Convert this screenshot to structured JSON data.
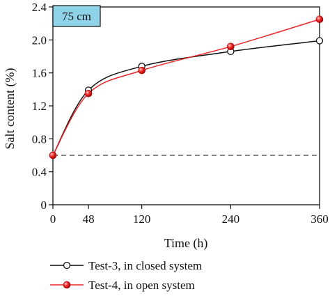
{
  "chart_data": {
    "type": "line",
    "xlabel": "Time (h)",
    "ylabel": "Salt content (%)",
    "x": [
      0,
      48,
      120,
      240,
      360
    ],
    "xticks": [
      0,
      48,
      120,
      240,
      360
    ],
    "xtick_labels": [
      "0",
      "48",
      "120",
      "240",
      "360"
    ],
    "xlim": [
      0,
      360
    ],
    "yticks": [
      0,
      0.4,
      0.8,
      1.2,
      1.6,
      2.0,
      2.4
    ],
    "ytick_labels": [
      "0",
      "0.4",
      "0.8",
      "1.2",
      "1.6",
      "2.0",
      "2.4"
    ],
    "ylim": [
      0,
      2.4
    ],
    "annotation": "75 cm",
    "reference_line": {
      "y": 0.6,
      "style": "dashed"
    },
    "grid": false,
    "legend_position": "bottom",
    "series": [
      {
        "name": "Test-3, in closed system",
        "values": [
          0.6,
          1.39,
          1.68,
          1.86,
          1.99
        ],
        "color": "#111111",
        "marker": "open-circle"
      },
      {
        "name": "Test-4, in open system",
        "values": [
          0.6,
          1.35,
          1.63,
          1.92,
          2.25
        ],
        "color": "#e8262a",
        "marker": "red-sphere"
      }
    ]
  },
  "colors": {
    "annotation_fill": "#8fd3e8",
    "axis": "#111111"
  }
}
